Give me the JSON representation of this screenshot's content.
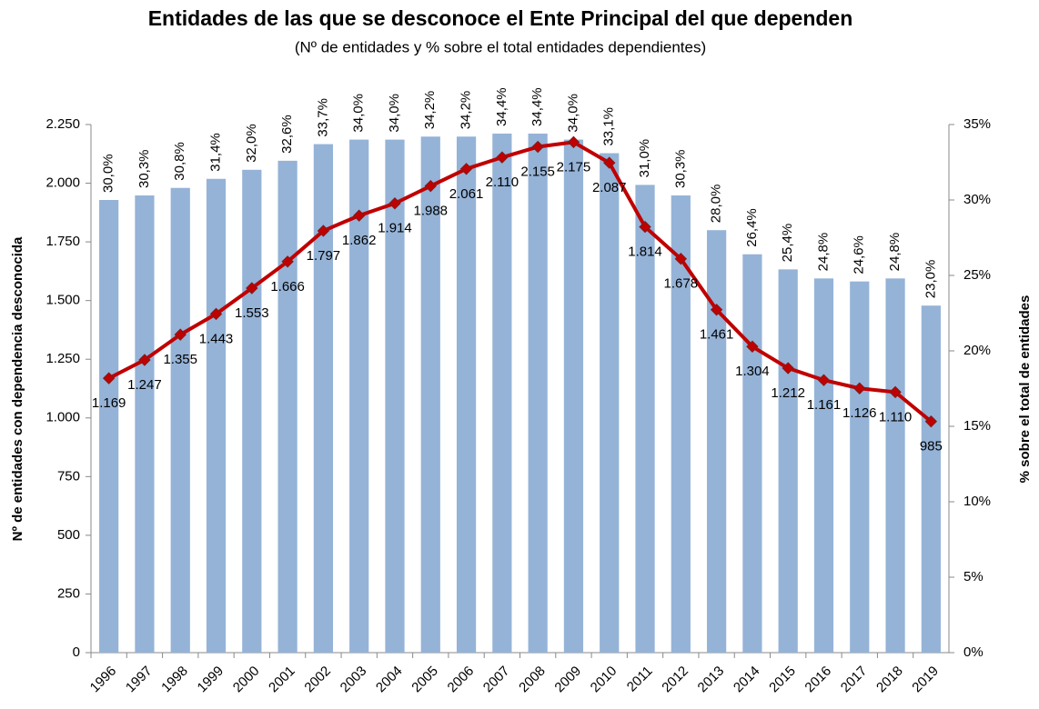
{
  "chart_data": {
    "type": "combo",
    "title": "Entidades de las que se desconoce el Ente Principal del que dependen",
    "subtitle": "(Nº de entidades y % sobre el total entidades dependientes)",
    "ylabel": "Nº de entidades con dependencia desconocida",
    "y2label": "% sobre el total de entidades",
    "categories": [
      "1996",
      "1997",
      "1998",
      "1999",
      "2000",
      "2001",
      "2002",
      "2003",
      "2004",
      "2005",
      "2006",
      "2007",
      "2008",
      "2009",
      "2010",
      "2011",
      "2012",
      "2013",
      "2014",
      "2015",
      "2016",
      "2017",
      "2018",
      "2019"
    ],
    "ylim": [
      0,
      2250
    ],
    "yticks": [
      0,
      250,
      500,
      750,
      {
        "value": 1000,
        "label": "1.000"
      },
      {
        "value": 1250,
        "label": "1.250"
      },
      {
        "value": 1500,
        "label": "1.500"
      },
      {
        "value": 1750,
        "label": "1.750"
      },
      {
        "value": 2000,
        "label": "2.000"
      },
      {
        "value": 2250,
        "label": "2.250"
      }
    ],
    "y2lim": [
      0,
      35
    ],
    "y2ticks": [
      {
        "value": 0,
        "label": "0%"
      },
      {
        "value": 5,
        "label": "5%"
      },
      {
        "value": 10,
        "label": "10%"
      },
      {
        "value": 15,
        "label": "15%"
      },
      {
        "value": 20,
        "label": "20%"
      },
      {
        "value": 25,
        "label": "25%"
      },
      {
        "value": 30,
        "label": "30%"
      },
      {
        "value": 35,
        "label": "35%"
      }
    ],
    "series": [
      {
        "type": "bar",
        "axis": "y2",
        "color": "#95b3d7",
        "values": [
          30.0,
          30.3,
          30.8,
          31.4,
          32.0,
          32.6,
          33.7,
          34.0,
          34.0,
          34.2,
          34.2,
          34.4,
          34.4,
          34.0,
          33.1,
          31.0,
          30.3,
          28.0,
          26.4,
          25.4,
          24.8,
          24.6,
          24.8,
          23.0
        ],
        "value_labels": [
          "30,0%",
          "30,3%",
          "30,8%",
          "31,4%",
          "32,0%",
          "32,6%",
          "33,7%",
          "34,0%",
          "34,0%",
          "34,2%",
          "34,2%",
          "34,4%",
          "34,4%",
          "34,0%",
          "33,1%",
          "31,0%",
          "30,3%",
          "28,0%",
          "26,4%",
          "25,4%",
          "24,8%",
          "24,6%",
          "24,8%",
          "23,0%"
        ]
      },
      {
        "type": "line",
        "axis": "y",
        "color": "#c00000",
        "values": [
          1169,
          1247,
          1355,
          1443,
          1553,
          1666,
          1797,
          1862,
          1914,
          1988,
          2061,
          2110,
          2155,
          2175,
          2087,
          1814,
          1678,
          1461,
          1304,
          1212,
          1161,
          1126,
          1110,
          985
        ],
        "value_labels": [
          "1.169",
          "1.247",
          "1.355",
          "1.443",
          "1.553",
          "1.666",
          "1.797",
          "1.862",
          "1.914",
          "1.988",
          "2.061",
          "2.110",
          "2.155",
          "2.175",
          "2.087",
          "1.814",
          "1.678",
          "1.461",
          "1.304",
          "1.212",
          "1.161",
          "1.126",
          "1.110",
          "985"
        ]
      }
    ]
  }
}
